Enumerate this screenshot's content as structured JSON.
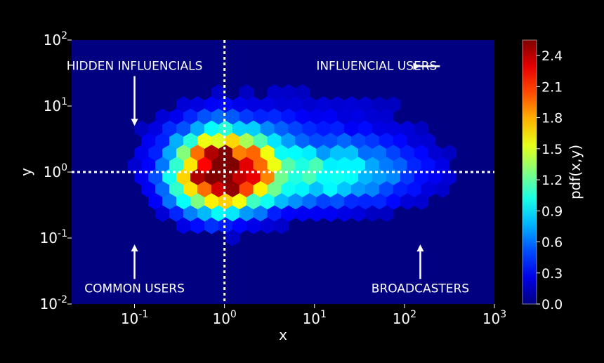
{
  "chart_data": {
    "type": "heatmap",
    "subtype": "hexbin",
    "xlabel": "x",
    "ylabel": "y",
    "x_scale": "log",
    "y_scale": "log",
    "xlim": [
      0.02,
      1000
    ],
    "ylim": [
      0.01,
      100
    ],
    "x_ticks": [
      {
        "value": 0.1,
        "base": "10",
        "exp": "-1"
      },
      {
        "value": 1,
        "base": "10",
        "exp": "0"
      },
      {
        "value": 10,
        "base": "10",
        "exp": "1"
      },
      {
        "value": 100,
        "base": "10",
        "exp": "2"
      },
      {
        "value": 1000,
        "base": "10",
        "exp": "3"
      }
    ],
    "y_ticks": [
      {
        "value": 0.01,
        "base": "10",
        "exp": "-2"
      },
      {
        "value": 0.1,
        "base": "10",
        "exp": "-1"
      },
      {
        "value": 1,
        "base": "10",
        "exp": "0"
      },
      {
        "value": 10,
        "base": "10",
        "exp": "1"
      },
      {
        "value": 100,
        "base": "10",
        "exp": "2"
      }
    ],
    "threshold_lines": {
      "x": 1,
      "y": 1
    },
    "colorbar": {
      "label": "pdf(x,y)",
      "range": [
        0,
        2.55
      ],
      "ticks": [
        "0.0",
        "0.3",
        "0.6",
        "0.9",
        "1.2",
        "1.5",
        "1.8",
        "2.1",
        "2.4"
      ],
      "colormap": "jet"
    },
    "density_model": {
      "main_peak": {
        "x": 0.9,
        "y": 1.0,
        "amplitude": 2.45
      },
      "note": "hexbin density concentrated around x≈1, y≈1, spreading toward higher x"
    },
    "annotations": [
      {
        "text": "HIDDEN INFLUENCIALS",
        "x": 0.1,
        "y": 40,
        "arrow_to": [
          0.1,
          5
        ],
        "arrow": "down"
      },
      {
        "text": "INFLUENCIAL USERS",
        "x": 20,
        "y": 40,
        "arrow_to": [
          150,
          40
        ],
        "arrow": "right"
      },
      {
        "text": "COMMON USERS",
        "x": 0.1,
        "y": 0.017,
        "arrow_to": [
          0.1,
          0.08
        ],
        "arrow": "up"
      },
      {
        "text": "BROADCASTERS",
        "x": 150,
        "y": 0.017,
        "arrow_to": [
          150,
          0.08
        ],
        "arrow": "up"
      }
    ],
    "grid": false,
    "legend": "none"
  },
  "colors": {
    "background": "#000000",
    "plot_background": "#000080",
    "text": "#ffffff",
    "annotation": "#ffffff",
    "threshold_line": "#ffffff"
  }
}
